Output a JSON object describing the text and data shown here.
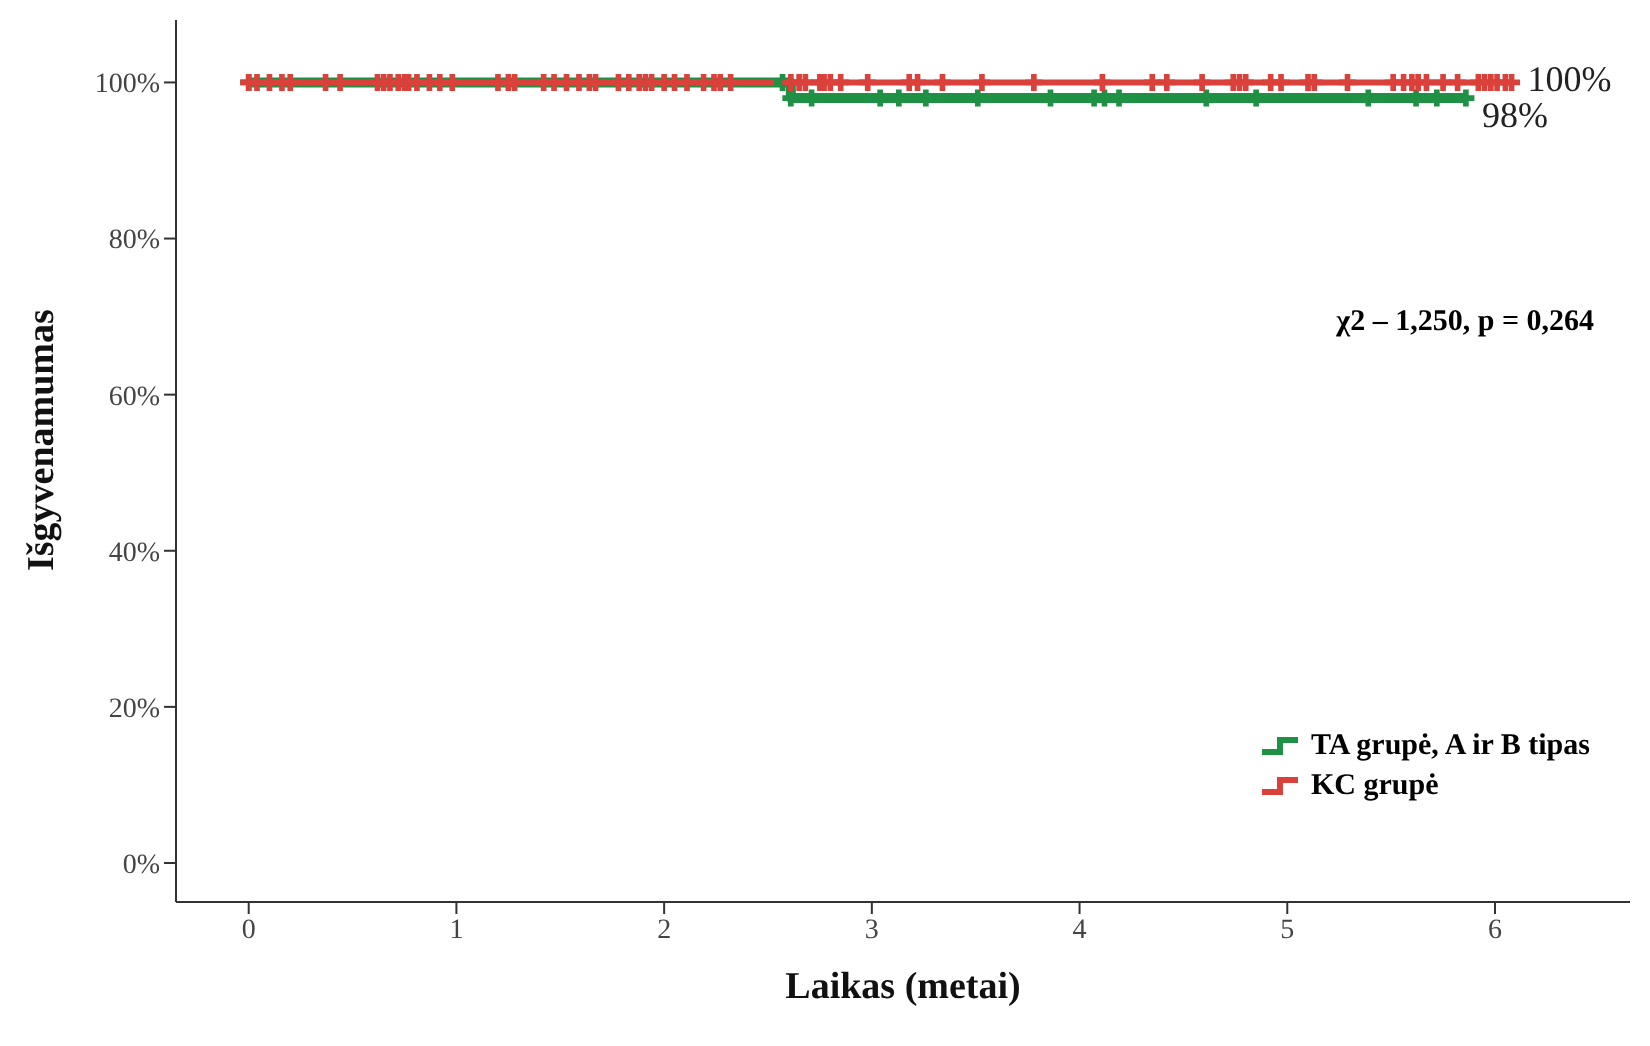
{
  "chart_data": {
    "type": "step",
    "xlabel": "Laikas (metai)",
    "ylabel": "Išgyvenamumas",
    "xlim": [
      -0.35,
      6.65
    ],
    "xticks": [
      0,
      1,
      2,
      3,
      4,
      5,
      6
    ],
    "ylim": [
      -5,
      108
    ],
    "yticks": [
      {
        "value": 0,
        "label": "0%"
      },
      {
        "value": 20,
        "label": "20%"
      },
      {
        "value": 40,
        "label": "40%"
      },
      {
        "value": 60,
        "label": "60%"
      },
      {
        "value": 80,
        "label": "80%"
      },
      {
        "value": 100,
        "label": "100%"
      }
    ],
    "grid": false,
    "legend": "bottom right",
    "marker": "cross",
    "line_style": "solid",
    "series": [
      {
        "name": "TA grupė, A ir B tipas",
        "color": "#1e9145",
        "x": [
          0,
          2.57,
          2.61,
          2.71,
          3.04,
          3.13,
          3.26,
          3.51,
          3.86,
          4.07,
          4.12,
          4.19,
          4.61,
          4.85,
          5.39,
          5.62,
          5.72,
          5.86
        ],
        "values": [
          100,
          100,
          98,
          98,
          98,
          98,
          98,
          98,
          98,
          98,
          98,
          98,
          98,
          98,
          98,
          98,
          98,
          98
        ]
      },
      {
        "name": "KC grupė",
        "color": "#d9413a",
        "x": [
          0,
          0.04,
          0.1,
          0.16,
          0.2,
          0.37,
          0.44,
          0.62,
          0.65,
          0.68,
          0.72,
          0.75,
          0.77,
          0.81,
          0.87,
          0.92,
          0.98,
          1.2,
          1.25,
          1.28,
          1.42,
          1.47,
          1.53,
          1.59,
          1.64,
          1.67,
          1.78,
          1.83,
          1.88,
          1.91,
          1.94,
          2.0,
          2.05,
          2.11,
          2.19,
          2.24,
          2.27,
          2.32,
          2.61,
          2.65,
          2.68,
          2.75,
          2.77,
          2.8,
          2.85,
          2.98,
          3.18,
          3.22,
          3.34,
          3.53,
          3.78,
          4.11,
          4.35,
          4.42,
          4.59,
          4.74,
          4.77,
          4.8,
          4.92,
          4.97,
          5.1,
          5.13,
          5.29,
          5.51,
          5.56,
          5.6,
          5.63,
          5.67,
          5.75,
          5.82,
          5.92,
          5.95,
          5.98,
          6.01,
          6.05,
          6.08
        ],
        "values": [
          100,
          100,
          100,
          100,
          100,
          100,
          100,
          100,
          100,
          100,
          100,
          100,
          100,
          100,
          100,
          100,
          100,
          100,
          100,
          100,
          100,
          100,
          100,
          100,
          100,
          100,
          100,
          100,
          100,
          100,
          100,
          100,
          100,
          100,
          100,
          100,
          100,
          100,
          100,
          100,
          100,
          100,
          100,
          100,
          100,
          100,
          100,
          100,
          100,
          100,
          100,
          100,
          100,
          100,
          100,
          100,
          100,
          100,
          100,
          100,
          100,
          100,
          100,
          100,
          100,
          100,
          100,
          100,
          100,
          100,
          100,
          100,
          100,
          100,
          100,
          100
        ]
      }
    ],
    "annotations": [
      {
        "text": "100%",
        "x": 6.08,
        "y": 100
      },
      {
        "text": "98%",
        "x": 5.86,
        "y": 98
      },
      "χ2 – 1,250, p = 0,264"
    ]
  }
}
